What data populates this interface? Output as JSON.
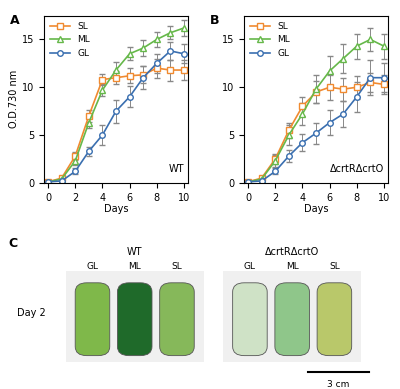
{
  "chart_data": [
    {
      "type": "line",
      "panel_label": "A",
      "title": "WT",
      "x_label": "Days",
      "y_label": "O.D.730 nm",
      "x": [
        0,
        1,
        2,
        3,
        4,
        5,
        6,
        7,
        8,
        9,
        10
      ],
      "xlim": [
        -0.3,
        10.3
      ],
      "xticks": [
        0,
        2,
        4,
        6,
        8,
        10
      ],
      "ylim": [
        0,
        17.5
      ],
      "yticks": [
        0,
        5,
        10,
        15
      ],
      "legend": "upper left",
      "series": [
        {
          "name": "SL",
          "color": "#f08a30",
          "marker": "square",
          "values": [
            0.1,
            0.5,
            2.8,
            7.0,
            10.8,
            11.0,
            11.2,
            11.3,
            12.0,
            11.8,
            11.8
          ],
          "errors": [
            0.1,
            0.2,
            0.4,
            0.6,
            0.6,
            0.7,
            0.8,
            0.9,
            1.0,
            1.1,
            1.0
          ]
        },
        {
          "name": "ML",
          "color": "#66b84a",
          "marker": "triangle",
          "values": [
            0.1,
            0.4,
            2.3,
            6.3,
            9.7,
            11.8,
            13.5,
            14.1,
            15.0,
            15.7,
            16.2
          ],
          "errors": [
            0.1,
            0.2,
            0.4,
            0.6,
            0.6,
            0.8,
            0.7,
            0.8,
            0.8,
            0.7,
            0.8
          ]
        },
        {
          "name": "GL",
          "color": "#3a6fb0",
          "marker": "circle",
          "values": [
            0.1,
            0.2,
            1.2,
            3.3,
            5.0,
            7.5,
            9.0,
            11.0,
            12.5,
            13.8,
            13.5
          ],
          "errors": [
            0.1,
            0.1,
            0.3,
            0.5,
            1.0,
            1.2,
            1.1,
            1.2,
            1.0,
            0.9,
            1.0
          ]
        }
      ]
    },
    {
      "type": "line",
      "panel_label": "B",
      "title": "ΔcrtRΔcrtO",
      "x_label": "Days",
      "x": [
        0,
        1,
        2,
        3,
        4,
        5,
        6,
        7,
        8,
        9,
        10
      ],
      "xlim": [
        -0.3,
        10.3
      ],
      "xticks": [
        0,
        2,
        4,
        6,
        8,
        10
      ],
      "ylim": [
        0,
        17.5
      ],
      "yticks": [
        0,
        5,
        10,
        15
      ],
      "legend": "upper left",
      "series": [
        {
          "name": "SL",
          "color": "#f08a30",
          "marker": "square",
          "values": [
            0.1,
            0.5,
            2.5,
            5.5,
            8.0,
            9.5,
            10.0,
            9.8,
            10.0,
            10.5,
            10.3
          ],
          "errors": [
            0.1,
            0.2,
            0.5,
            0.8,
            1.0,
            1.2,
            1.3,
            1.2,
            1.2,
            1.0,
            1.0
          ]
        },
        {
          "name": "ML",
          "color": "#66b84a",
          "marker": "triangle",
          "values": [
            0.1,
            0.4,
            2.3,
            5.0,
            7.2,
            9.8,
            11.7,
            13.0,
            14.3,
            15.0,
            14.3
          ],
          "errors": [
            0.1,
            0.2,
            0.6,
            1.0,
            1.2,
            1.5,
            1.6,
            1.5,
            1.3,
            1.2,
            1.3
          ]
        },
        {
          "name": "GL",
          "color": "#3a6fb0",
          "marker": "circle",
          "values": [
            0.1,
            0.2,
            1.2,
            2.8,
            4.2,
            5.2,
            6.3,
            7.2,
            9.0,
            11.0,
            11.0
          ],
          "errors": [
            0.1,
            0.1,
            0.3,
            0.6,
            0.9,
            1.1,
            1.3,
            1.4,
            1.6,
            1.8,
            1.5
          ]
        }
      ]
    }
  ],
  "panel_c": {
    "panel_label": "C",
    "row_label": "Day 2",
    "groups": [
      {
        "title": "WT",
        "tubes": [
          "GL",
          "ML",
          "SL"
        ]
      },
      {
        "title": "ΔcrtRΔcrtO",
        "tubes": [
          "GL",
          "ML",
          "SL"
        ]
      }
    ],
    "scale_bar": "3 cm"
  }
}
